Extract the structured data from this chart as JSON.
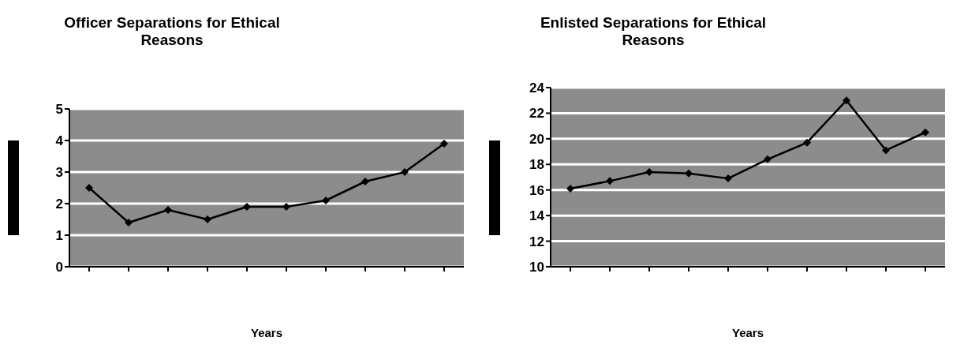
{
  "chart_data": [
    {
      "type": "line",
      "title": "Officer Separations for Ethical Reasons",
      "xlabel": "Years",
      "categories": [
        null,
        null,
        null,
        null,
        null,
        null,
        null,
        null,
        null,
        null
      ],
      "series": [
        {
          "color": "#000000",
          "values": [
            2.5,
            1.4,
            1.8,
            1.5,
            1.9,
            1.9,
            2.1,
            2.7,
            3.0,
            3.9
          ]
        }
      ],
      "ylim": [
        0,
        5
      ],
      "yticks": [
        0,
        1,
        2,
        3,
        4,
        5
      ],
      "grid": "y",
      "legend": false,
      "marker": "diamond",
      "line_style": "solid"
    },
    {
      "type": "line",
      "title": "Enlisted Separations for Ethical Reasons",
      "xlabel": "Years",
      "categories": [
        null,
        null,
        null,
        null,
        null,
        null,
        null,
        null,
        null,
        null
      ],
      "series": [
        {
          "color": "#000000",
          "values": [
            16.1,
            16.7,
            17.4,
            17.3,
            16.9,
            18.4,
            19.7,
            23.0,
            19.1,
            20.5
          ]
        }
      ],
      "ylim": [
        10,
        24
      ],
      "yticks": [
        10,
        12,
        14,
        16,
        18,
        20,
        22,
        24
      ],
      "grid": "y",
      "legend": false,
      "marker": "diamond",
      "line_style": "solid"
    }
  ]
}
